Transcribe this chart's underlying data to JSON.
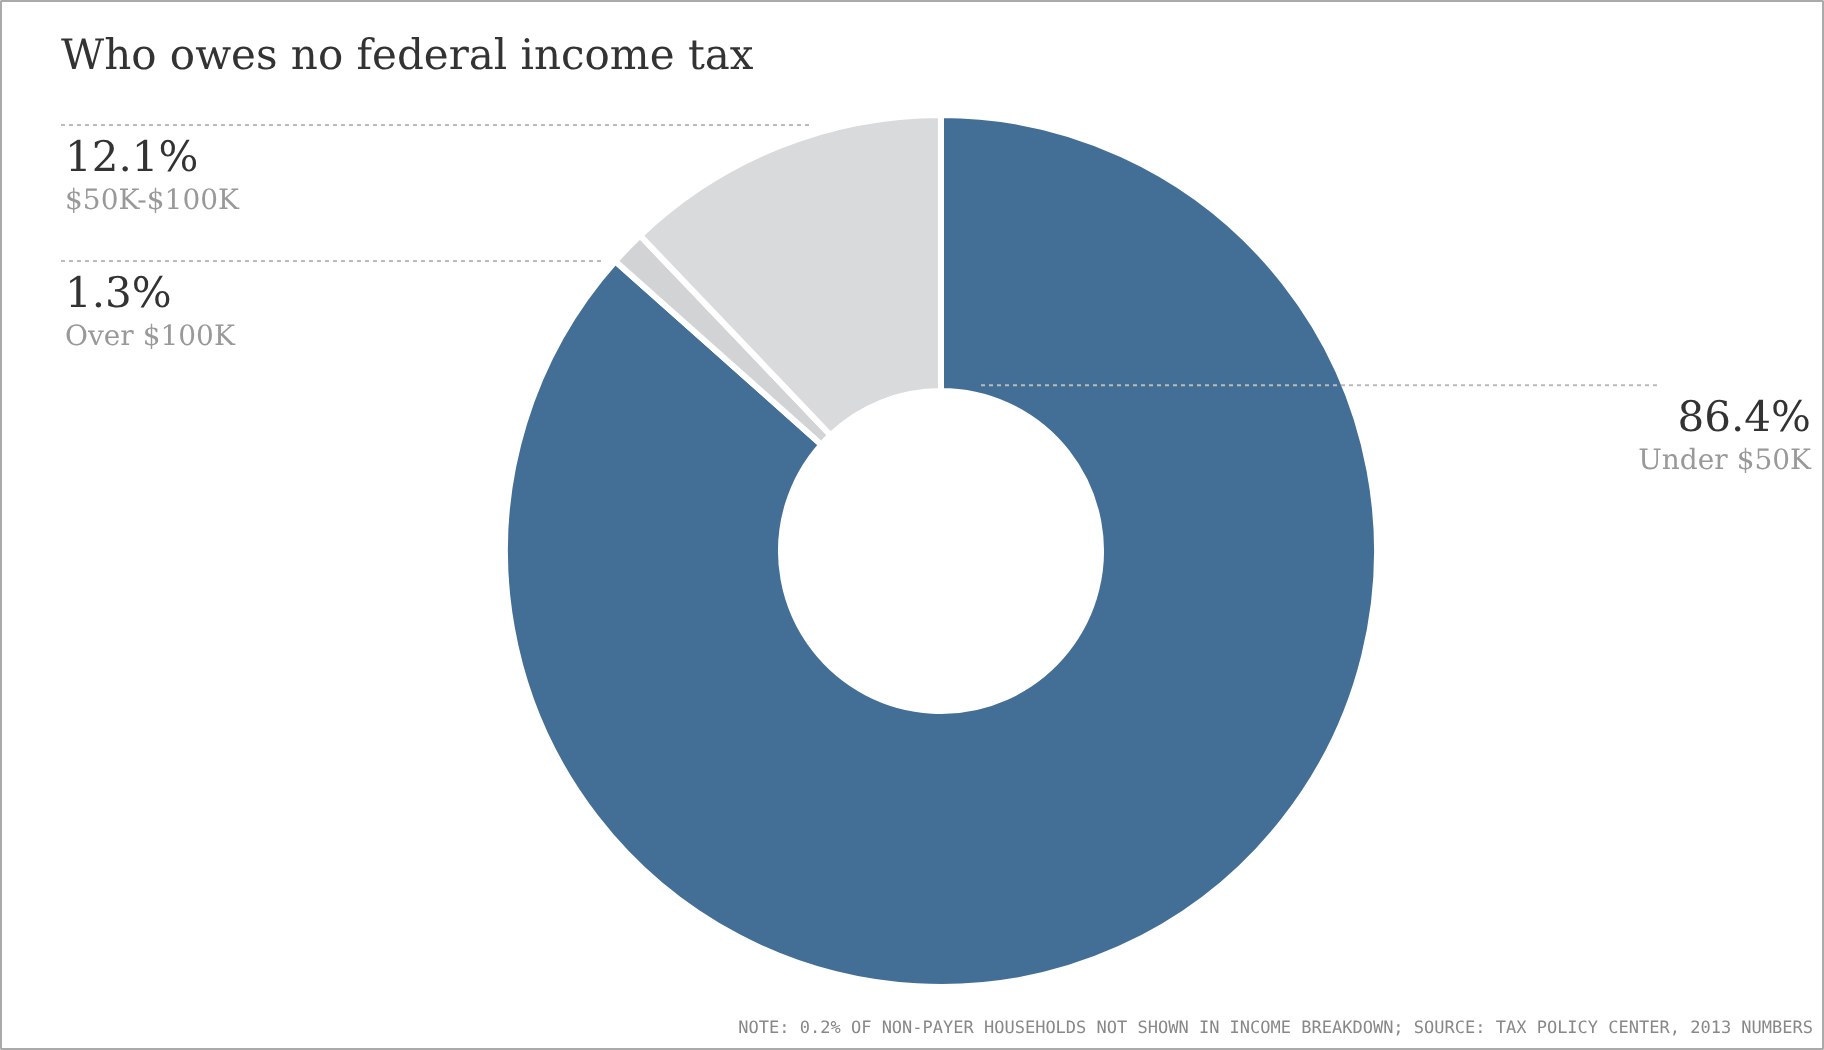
{
  "chart_data": {
    "type": "donut",
    "title": "Who owes no federal income tax",
    "categories": [
      "Under $50K",
      "Over $100K",
      "$50K-$100K"
    ],
    "values": [
      86.4,
      1.3,
      12.1
    ],
    "value_labels": [
      "86.4%",
      "1.3%",
      "12.1%"
    ],
    "colors": [
      "#436f97",
      "#d2d3d5",
      "#d9dadc"
    ],
    "annotations": [
      "NOTE: 0.2% OF NON-PAYER HOUSEHOLDS NOT SHOWN IN INCOME BREAKDOWN; SOURCE: TAX POLICY CENTER, 2013 NUMBERS"
    ]
  }
}
